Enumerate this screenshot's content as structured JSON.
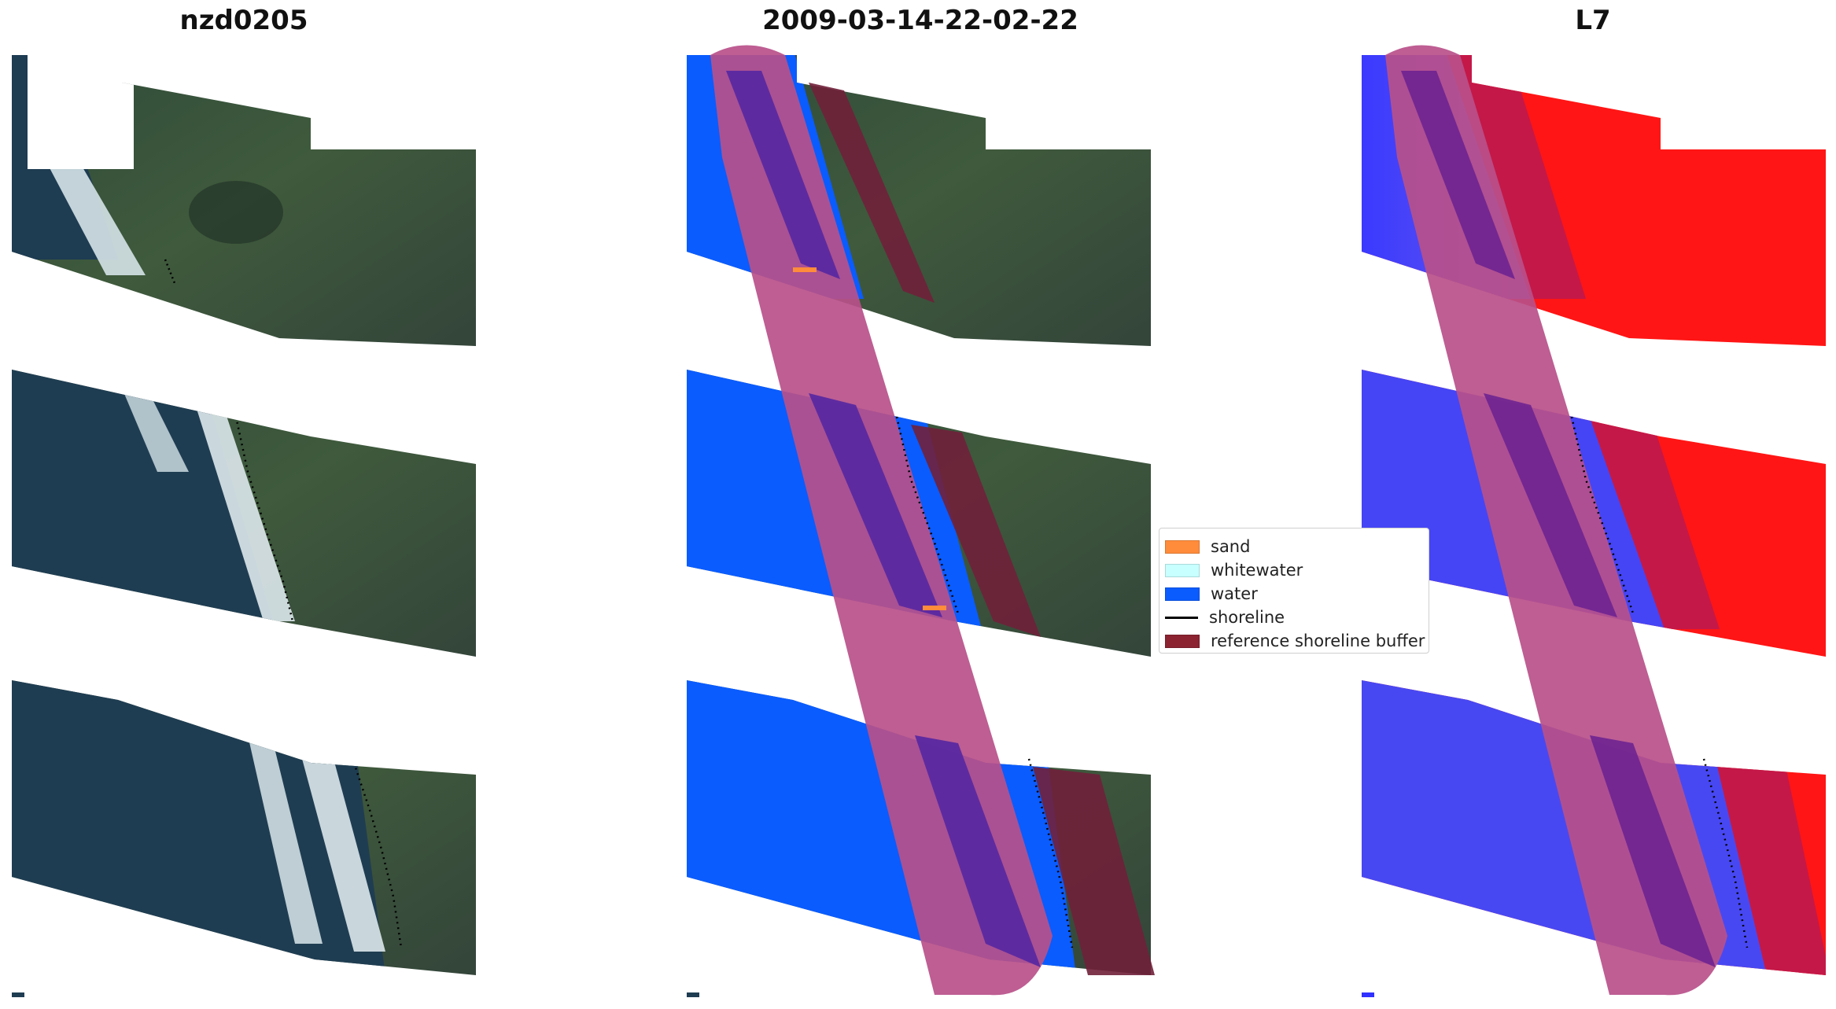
{
  "titles": {
    "site": "nzd0205",
    "date": "2009-03-14-22-02-22",
    "satellite": "L7"
  },
  "legend": {
    "items": [
      {
        "label": "sand",
        "kind": "patch",
        "color": "#ff8c3a"
      },
      {
        "label": "whitewater",
        "kind": "patch",
        "color": "#c8ffff"
      },
      {
        "label": "water",
        "kind": "patch",
        "color": "#0a5cff"
      },
      {
        "label": "shoreline",
        "kind": "line",
        "color": "#000000"
      },
      {
        "label": "reference shoreline buffer",
        "kind": "patch",
        "color": "#8b2330"
      }
    ]
  },
  "colors": {
    "land": "#3a4a36",
    "ocean": "#1f3d52",
    "surf": "#d9e6ea",
    "water_class": "#0a5cff",
    "water_index_blue": "#3030ff",
    "water_index_red": "#ff1515",
    "buffer_overlay": "#b9508a",
    "buffer_dark": "#70203a"
  }
}
